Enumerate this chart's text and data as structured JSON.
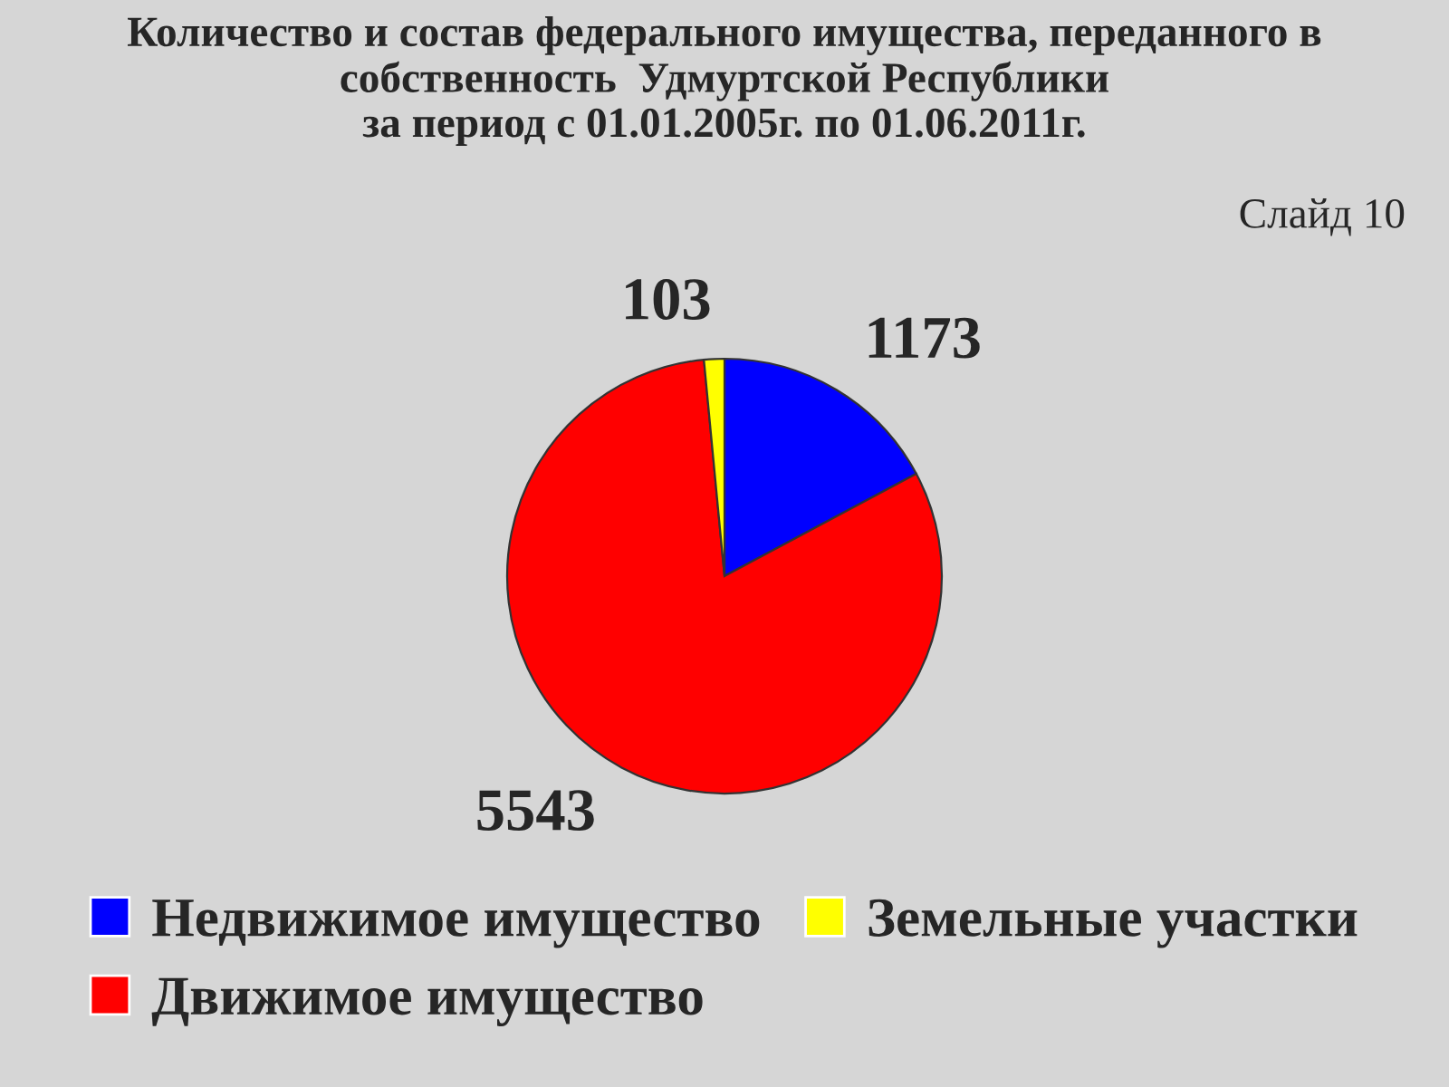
{
  "chart_data": {
    "type": "pie",
    "title": "Количество и состав федерального имущества, переданного в\nсобственность  Удмуртской Республики\nза период с 01.01.2005г. по 01.06.2011г.",
    "categories": [
      "Недвижимое имущество",
      "Движимое имущество",
      "Земельные участки"
    ],
    "values": [
      1173,
      5543,
      103
    ],
    "colors": [
      "#0000ff",
      "#ff0000",
      "#ffff00"
    ],
    "data_labels": true,
    "legend": "bottom",
    "annotations": [
      "Слайд 10"
    ]
  }
}
